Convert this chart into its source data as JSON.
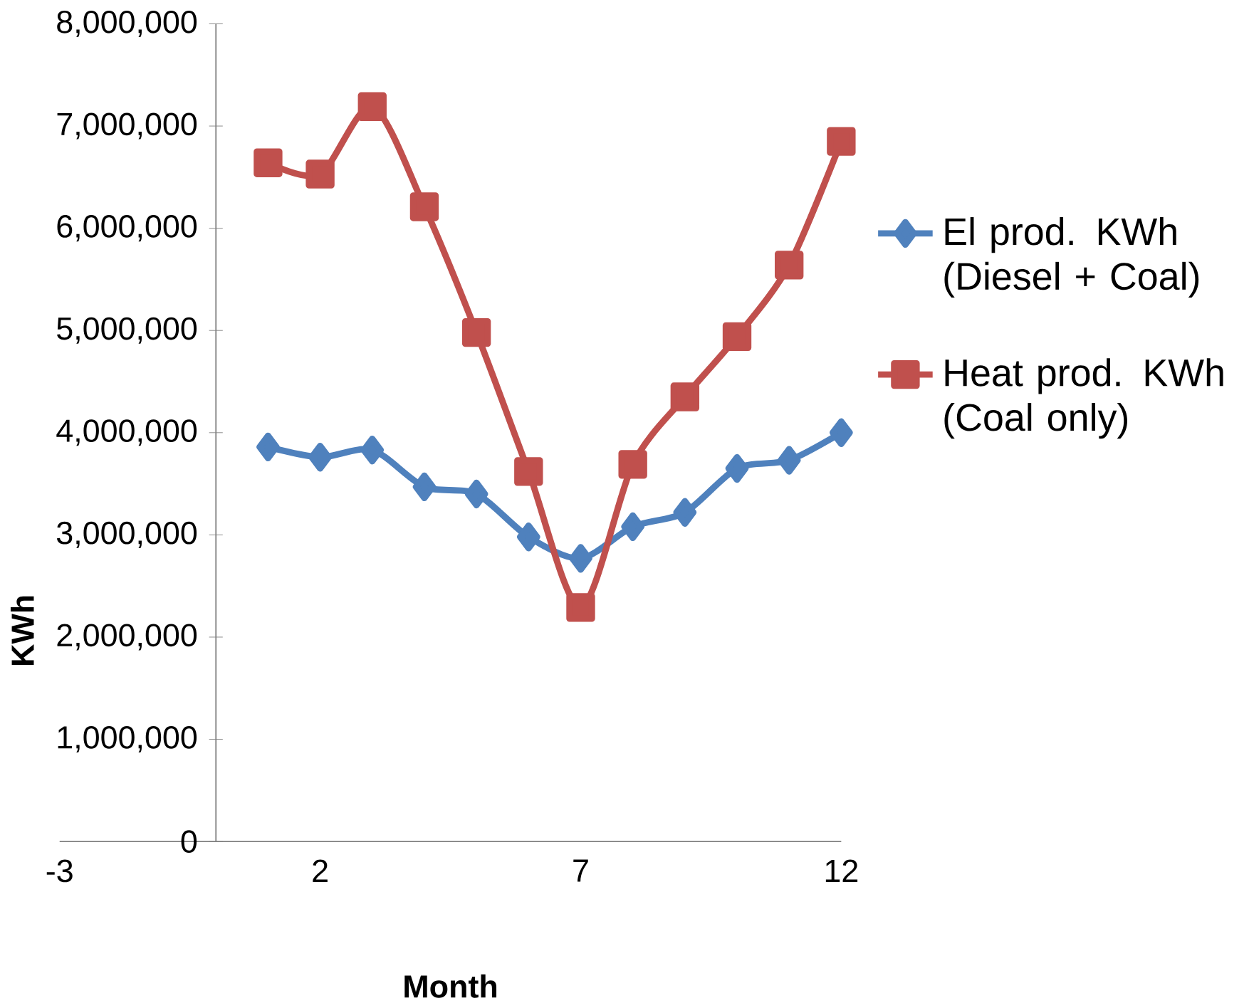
{
  "chart_data": {
    "type": "line",
    "xlabel": "Month",
    "ylabel": "KWh",
    "x": [
      1,
      2,
      3,
      4,
      5,
      6,
      7,
      8,
      9,
      10,
      11,
      12
    ],
    "series": [
      {
        "name": "El prod. KWh (Diesel + Coal)",
        "color": "#4f81bd",
        "marker": "diamond",
        "values": [
          3860000,
          3760000,
          3830000,
          3470000,
          3400000,
          2980000,
          2770000,
          3080000,
          3220000,
          3650000,
          3730000,
          4000000
        ]
      },
      {
        "name": "Heat prod. KWh (Coal only)",
        "color": "#c0504d",
        "marker": "square",
        "values": [
          6640000,
          6530000,
          7190000,
          6210000,
          4980000,
          3620000,
          2290000,
          3690000,
          4350000,
          4940000,
          5640000,
          6850000
        ]
      }
    ],
    "xlim": [
      -3,
      12
    ],
    "xticks": [
      -3,
      2,
      7,
      12
    ],
    "ylim": [
      0,
      8000000
    ],
    "yticks": [
      {
        "value": 0,
        "label": "0"
      },
      {
        "value": 1000000,
        "label": "1,000,000"
      },
      {
        "value": 2000000,
        "label": "2,000,000"
      },
      {
        "value": 3000000,
        "label": "3,000,000"
      },
      {
        "value": 4000000,
        "label": "4,000,000"
      },
      {
        "value": 5000000,
        "label": "5,000,000"
      },
      {
        "value": 6000000,
        "label": "6,000,000"
      },
      {
        "value": 7000000,
        "label": "7,000,000"
      },
      {
        "value": 8000000,
        "label": "8,000,000"
      }
    ],
    "grid": false,
    "legend": "right"
  }
}
